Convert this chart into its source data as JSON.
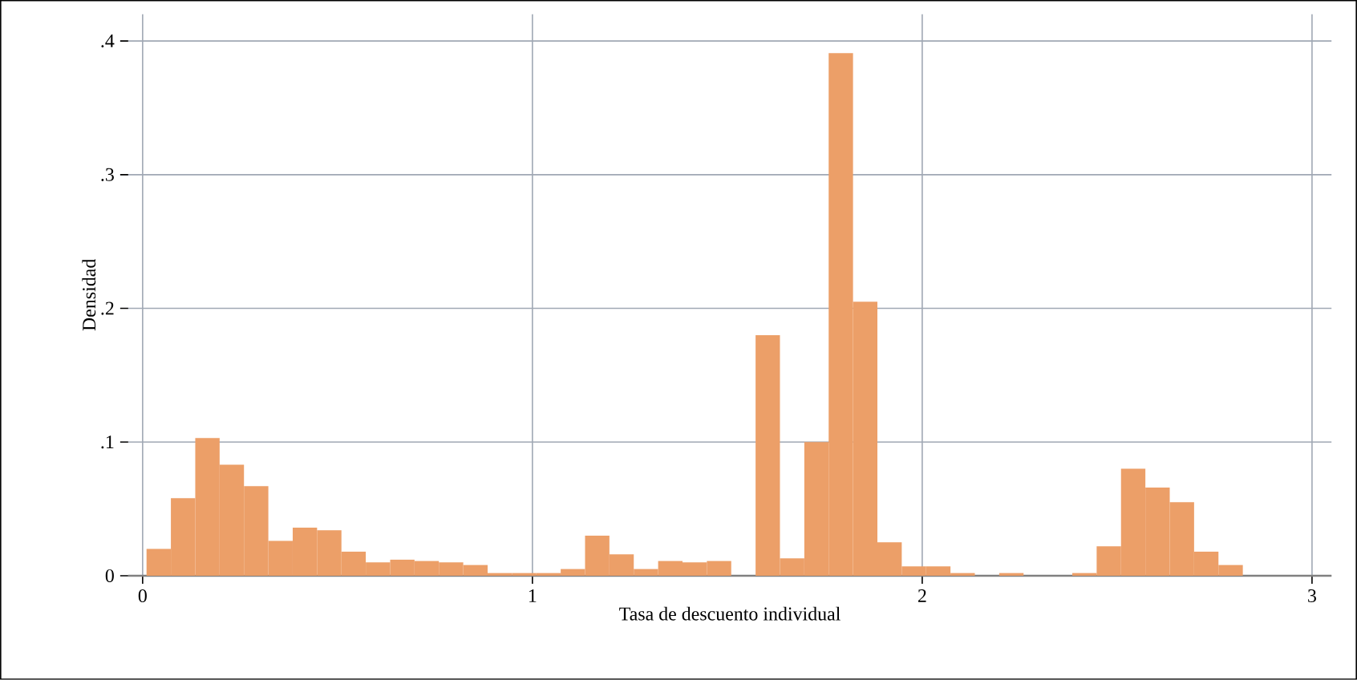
{
  "chart_data": {
    "type": "histogram",
    "xlabel": "Tasa de descuento individual",
    "ylabel": "Densidad",
    "bins": [
      0.01,
      0.0725,
      0.135,
      0.1975,
      0.26,
      0.3225,
      0.385,
      0.4475,
      0.51,
      0.5725,
      0.635,
      0.6975,
      0.76,
      0.8225,
      0.885,
      0.9475,
      1.01,
      1.0725,
      1.135,
      1.1975,
      1.26,
      1.3225,
      1.385,
      1.4475,
      1.51,
      1.5725,
      1.635,
      1.6975,
      1.76,
      1.8225,
      1.885,
      1.9475,
      2.01,
      2.0725,
      2.135,
      2.1975,
      2.26,
      2.3225,
      2.385,
      2.4475,
      2.51,
      2.5725,
      2.635,
      2.6975,
      2.76,
      2.8225
    ],
    "values": [
      0.02,
      0.058,
      0.103,
      0.083,
      0.067,
      0.026,
      0.036,
      0.034,
      0.018,
      0.01,
      0.012,
      0.011,
      0.01,
      0.008,
      0.002,
      0.002,
      0.002,
      0.005,
      0.03,
      0.016,
      0.005,
      0.011,
      0.01,
      0.011,
      0,
      0.18,
      0.013,
      0.1,
      0.391,
      0.205,
      0.025,
      0.007,
      0.007,
      0.002,
      0,
      0.002,
      0,
      0,
      0.002,
      0.022,
      0.08,
      0.066,
      0.055,
      0.018,
      0.008
    ],
    "color": "#ec9f68",
    "xlim": [
      -0.037,
      3.05
    ],
    "ylim": [
      0,
      0.42
    ],
    "xticks": [
      0,
      1,
      2,
      3
    ],
    "yticks": [
      0,
      {
        "value": 0.1,
        "label": ".1"
      },
      {
        "value": 0.2,
        "label": ".2"
      },
      {
        "value": 0.3,
        "label": ".3"
      },
      {
        "value": 0.4,
        "label": ".4"
      }
    ],
    "grid": true
  }
}
